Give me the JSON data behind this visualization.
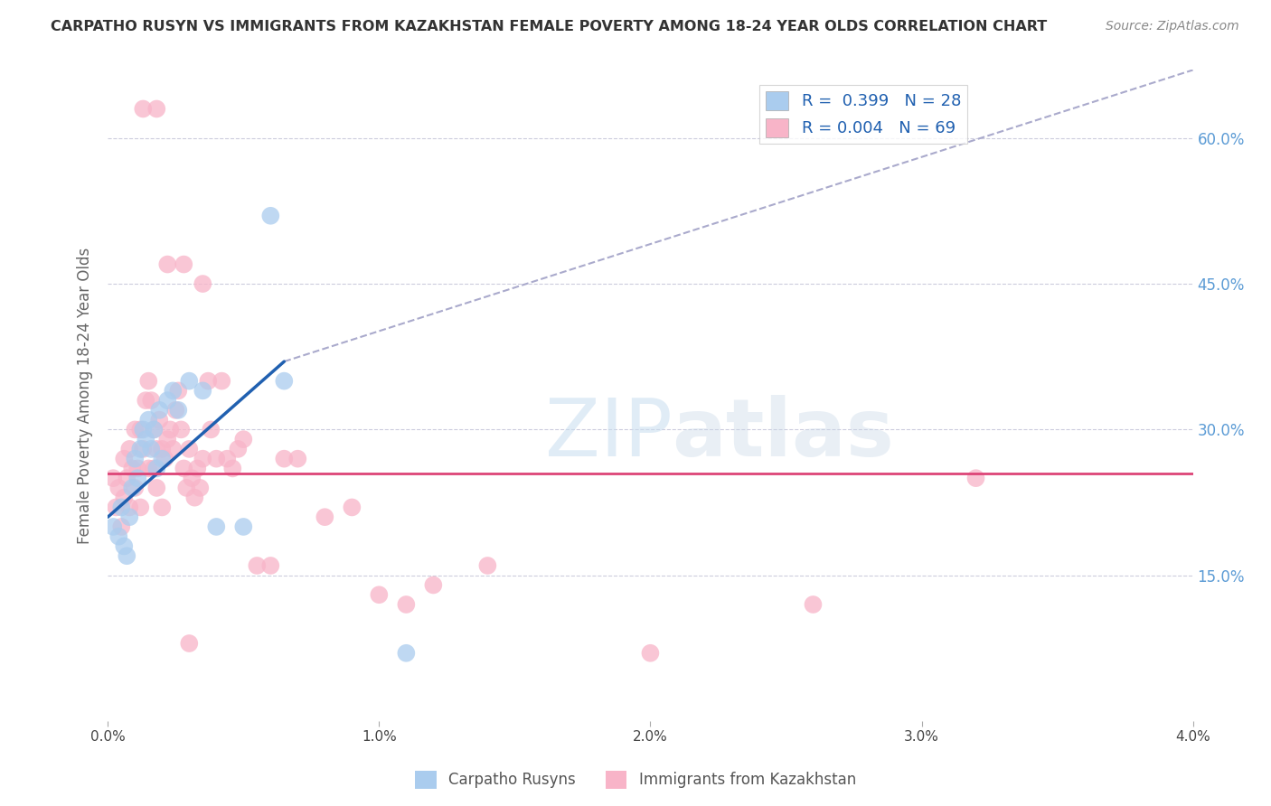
{
  "title": "CARPATHO RUSYN VS IMMIGRANTS FROM KAZAKHSTAN FEMALE POVERTY AMONG 18-24 YEAR OLDS CORRELATION CHART",
  "source": "Source: ZipAtlas.com",
  "ylabel": "Female Poverty Among 18-24 Year Olds",
  "xmin": 0.0,
  "xmax": 4.0,
  "ymin": 0.0,
  "ymax": 67.0,
  "yticks": [
    15,
    30,
    45,
    60
  ],
  "ytick_labels": [
    "15.0%",
    "30.0%",
    "45.0%",
    "60.0%"
  ],
  "blue_R": 0.399,
  "blue_N": 28,
  "pink_R": 0.004,
  "pink_N": 69,
  "blue_color": "#aaccee",
  "pink_color": "#f8b4c8",
  "blue_line_color": "#2060b0",
  "pink_line_color": "#dd4477",
  "dashed_line_color": "#aaaacc",
  "watermark_zip": "ZIP",
  "watermark_atlas": "atlas",
  "background_color": "#ffffff",
  "grid_color": "#ccccdd",
  "blue_line_x0": 0.0,
  "blue_line_y0": 21.0,
  "blue_line_x1": 0.65,
  "blue_line_y1": 37.0,
  "dash_line_x0": 0.65,
  "dash_line_y0": 37.0,
  "dash_line_x1": 4.0,
  "dash_line_y1": 67.0,
  "pink_line_y": 25.5,
  "blue_scatter_x": [
    0.02,
    0.04,
    0.05,
    0.06,
    0.07,
    0.08,
    0.09,
    0.1,
    0.11,
    0.12,
    0.13,
    0.14,
    0.15,
    0.16,
    0.17,
    0.18,
    0.19,
    0.2,
    0.22,
    0.24,
    0.26,
    0.3,
    0.35,
    0.4,
    0.5,
    0.6,
    0.65,
    1.1
  ],
  "blue_scatter_y": [
    20,
    19,
    22,
    18,
    17,
    21,
    24,
    27,
    25,
    28,
    30,
    29,
    31,
    28,
    30,
    26,
    32,
    27,
    33,
    34,
    32,
    35,
    34,
    20,
    20,
    52,
    35,
    7
  ],
  "pink_scatter_x": [
    0.02,
    0.03,
    0.04,
    0.05,
    0.06,
    0.06,
    0.07,
    0.08,
    0.08,
    0.09,
    0.1,
    0.1,
    0.11,
    0.12,
    0.12,
    0.13,
    0.14,
    0.15,
    0.15,
    0.16,
    0.17,
    0.17,
    0.18,
    0.18,
    0.19,
    0.2,
    0.2,
    0.21,
    0.22,
    0.23,
    0.24,
    0.25,
    0.26,
    0.27,
    0.28,
    0.29,
    0.3,
    0.31,
    0.32,
    0.33,
    0.34,
    0.35,
    0.37,
    0.38,
    0.4,
    0.42,
    0.44,
    0.46,
    0.48,
    0.5,
    0.55,
    0.6,
    0.65,
    0.7,
    0.8,
    0.9,
    1.0,
    1.1,
    1.2,
    1.4,
    2.0,
    2.6,
    0.13,
    0.18,
    0.22,
    0.28,
    0.3,
    0.35,
    3.2
  ],
  "pink_scatter_y": [
    25,
    22,
    24,
    20,
    27,
    23,
    25,
    28,
    22,
    26,
    30,
    24,
    26,
    30,
    22,
    28,
    33,
    35,
    26,
    33,
    30,
    26,
    28,
    24,
    31,
    28,
    22,
    27,
    29,
    30,
    28,
    32,
    34,
    30,
    26,
    24,
    28,
    25,
    23,
    26,
    24,
    27,
    35,
    30,
    27,
    35,
    27,
    26,
    28,
    29,
    16,
    16,
    27,
    27,
    21,
    22,
    13,
    12,
    14,
    16,
    7,
    12,
    63,
    63,
    47,
    47,
    8,
    45,
    25
  ]
}
